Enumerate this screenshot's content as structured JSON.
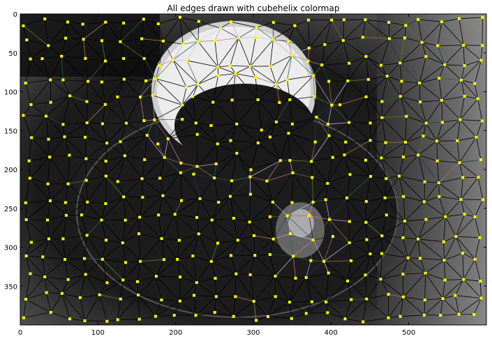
{
  "chart_data": {
    "type": "scatter",
    "title": "All edges drawn with cubehelix colormap",
    "xlabel": "",
    "ylabel": "",
    "xlim": [
      0,
      600
    ],
    "ylim": [
      400,
      0
    ],
    "y_inverted": true,
    "background_image": "grayscale photo of a coffee cup with saucer and spoon",
    "x_ticks": [
      0,
      100,
      200,
      300,
      400,
      500
    ],
    "y_ticks": [
      0,
      50,
      100,
      150,
      200,
      250,
      300,
      350
    ],
    "x_tick_labels": [
      "0",
      "100",
      "200",
      "300",
      "400",
      "500"
    ],
    "y_tick_labels": [
      "0",
      "50",
      "100",
      "150",
      "200",
      "250",
      "300",
      "350"
    ],
    "grid": false,
    "marker_color": "#ffff00",
    "edge_color_default": "#000000",
    "colormap": "cubehelix",
    "grid_spec": {
      "x_start": 10,
      "x_end": 590,
      "x_count": 25,
      "y_start": 10,
      "y_end": 390,
      "y_count": 16
    },
    "cup_center": [
      282,
      120
    ],
    "cup_radius": [
      120,
      95
    ]
  }
}
